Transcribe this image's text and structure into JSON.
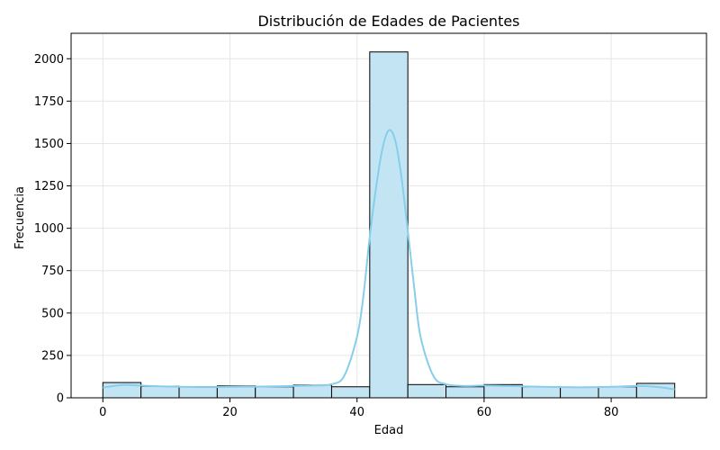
{
  "chart_data": {
    "type": "bar",
    "title": "Distribución de Edades de Pacientes",
    "xlabel": "Edad",
    "ylabel": "Frecuencia",
    "xlim": [
      -5,
      95
    ],
    "ylim": [
      0,
      2150
    ],
    "bins": [
      {
        "x0": 0,
        "x1": 6,
        "count": 90
      },
      {
        "x0": 6,
        "x1": 12,
        "count": 68
      },
      {
        "x0": 12,
        "x1": 18,
        "count": 65
      },
      {
        "x0": 18,
        "x1": 24,
        "count": 70
      },
      {
        "x0": 24,
        "x1": 30,
        "count": 65
      },
      {
        "x0": 30,
        "x1": 36,
        "count": 75
      },
      {
        "x0": 36,
        "x1": 42,
        "count": 65
      },
      {
        "x0": 42,
        "x1": 48,
        "count": 2040
      },
      {
        "x0": 48,
        "x1": 54,
        "count": 78
      },
      {
        "x0": 54,
        "x1": 60,
        "count": 65
      },
      {
        "x0": 60,
        "x1": 66,
        "count": 78
      },
      {
        "x0": 66,
        "x1": 72,
        "count": 65
      },
      {
        "x0": 72,
        "x1": 78,
        "count": 62
      },
      {
        "x0": 78,
        "x1": 84,
        "count": 65
      },
      {
        "x0": 84,
        "x1": 90,
        "count": 85
      }
    ],
    "kde": {
      "x": [
        0,
        3,
        6,
        9,
        12,
        15,
        18,
        21,
        24,
        27,
        30,
        33,
        36,
        38,
        40,
        41,
        42,
        43,
        44,
        45,
        46,
        47,
        48,
        49,
        50,
        52,
        54,
        57,
        60,
        63,
        66,
        69,
        72,
        75,
        78,
        81,
        84,
        87,
        90
      ],
      "y": [
        60,
        75,
        72,
        68,
        65,
        63,
        63,
        65,
        66,
        68,
        70,
        72,
        80,
        130,
        360,
        600,
        950,
        1240,
        1470,
        1578,
        1520,
        1300,
        980,
        650,
        360,
        130,
        80,
        70,
        72,
        70,
        68,
        65,
        63,
        62,
        63,
        66,
        70,
        65,
        50
      ]
    },
    "x_ticks": [
      "0",
      "20",
      "40",
      "60",
      "80"
    ],
    "x_tick_values": [
      0,
      20,
      40,
      60,
      80
    ],
    "y_ticks": [
      "0",
      "250",
      "500",
      "750",
      "1000",
      "1250",
      "1500",
      "1750",
      "2000"
    ],
    "y_tick_values": [
      0,
      250,
      500,
      750,
      1000,
      1250,
      1500,
      1750,
      2000
    ],
    "grid": true,
    "colors": {
      "bar_fill": "#c3e5f3",
      "bar_edge": "#000000",
      "kde_line": "#87ceeb",
      "grid": "#e6e6e6",
      "axis": "#000000"
    }
  }
}
